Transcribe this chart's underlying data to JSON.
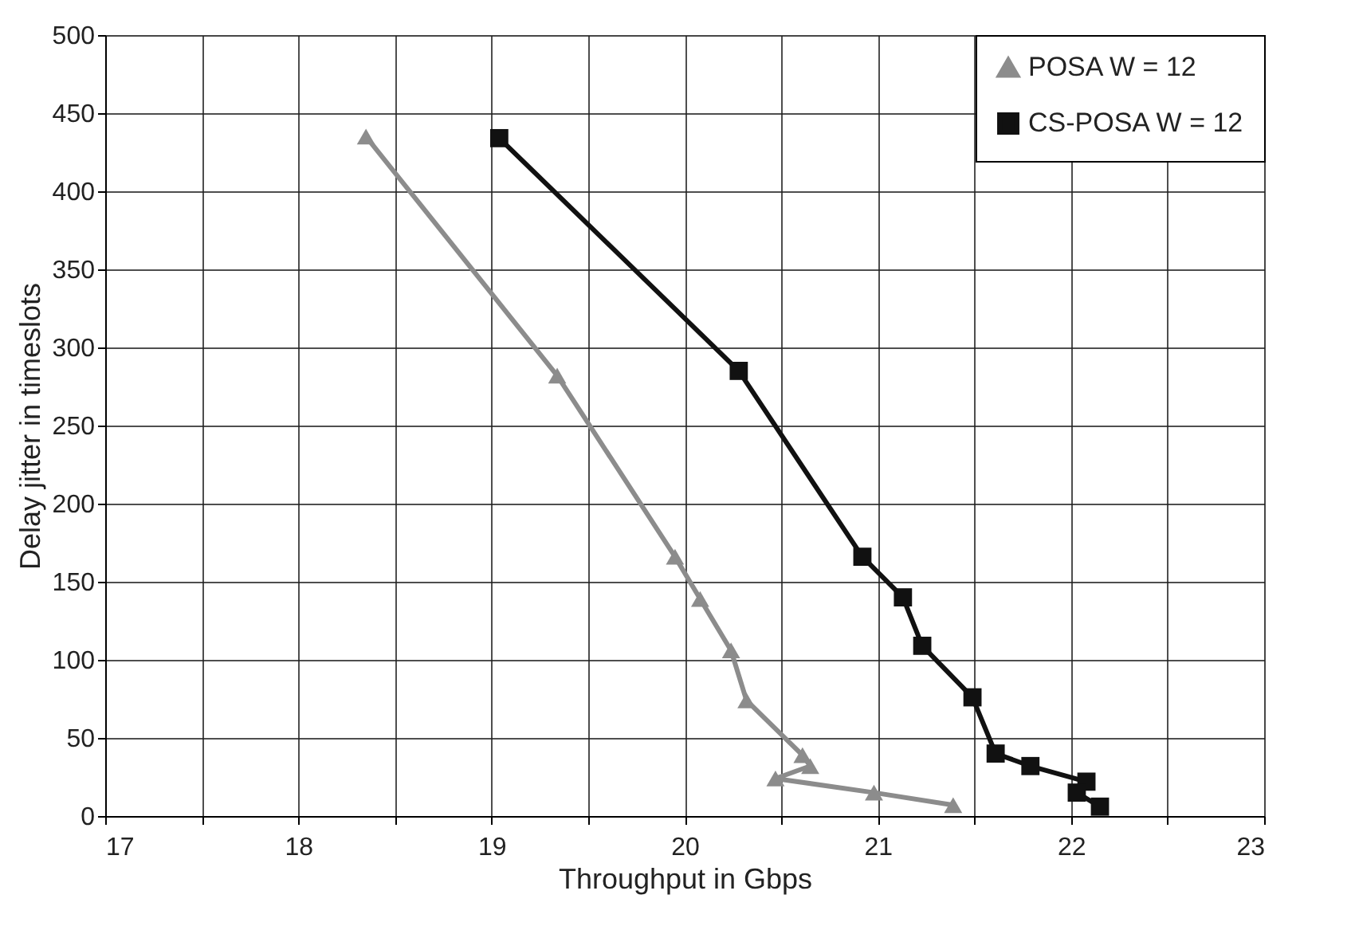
{
  "chart_data": {
    "type": "line",
    "xlabel": "Throughput in Gbps",
    "ylabel": "Delay jitter in timeslots",
    "xlim": [
      17,
      23
    ],
    "ylim": [
      0,
      500
    ],
    "xticks": [
      17,
      {
        "value": 17.5,
        "label": null
      },
      18,
      {
        "value": 18.5,
        "label": null
      },
      19,
      {
        "value": 19.5,
        "label": null
      },
      20,
      {
        "value": 20.5,
        "label": null
      },
      21,
      {
        "value": 21.5,
        "label": null
      },
      22,
      {
        "value": 22.5,
        "label": null
      },
      23
    ],
    "yticks": [
      0,
      50,
      100,
      150,
      200,
      250,
      300,
      350,
      400,
      450,
      500
    ],
    "grid": true,
    "legend": "top right",
    "line_style": "solid",
    "series": [
      {
        "name": "POSA W = 12",
        "color": "#8c8c8c",
        "marker": "triangle",
        "x": [
          18.35,
          19.34,
          19.95,
          20.08,
          20.24,
          20.32,
          20.61,
          20.65,
          20.47,
          20.98,
          21.39
        ],
        "values": [
          435,
          282,
          166,
          139,
          106,
          74,
          39,
          32,
          24,
          15,
          7
        ]
      },
      {
        "name": "CS-POSA W = 12",
        "color": "#111111",
        "marker": "square",
        "x": [
          19.04,
          20.28,
          20.92,
          21.13,
          21.23,
          21.49,
          21.61,
          21.79,
          22.08,
          22.03,
          22.15
        ],
        "values": [
          434,
          285,
          166,
          140,
          109,
          76,
          40,
          32,
          22,
          15,
          6
        ]
      }
    ]
  }
}
